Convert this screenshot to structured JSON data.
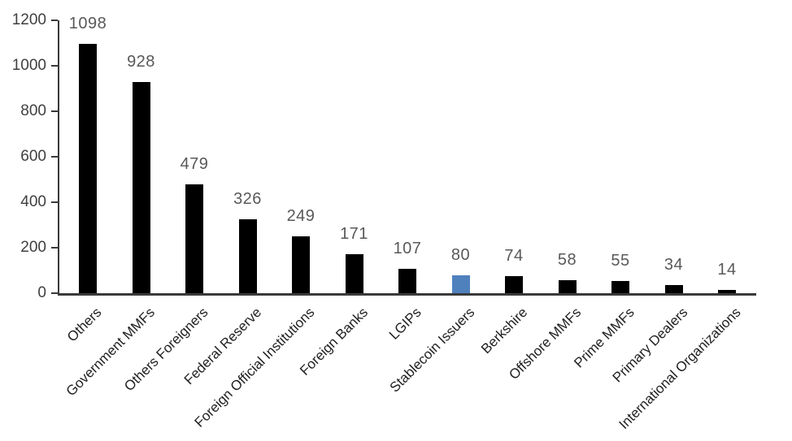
{
  "chart_data": {
    "type": "bar",
    "title": "",
    "xlabel": "",
    "ylabel": "",
    "categories": [
      "Others",
      "Government MMFs",
      "Others Foreigners",
      "Federal Reserve",
      "Foreign Official Institutions",
      "Foreign Banks",
      "LGIPs",
      "Stablecoin Issuers",
      "Berkshire",
      "Offshore MMFs",
      "Prime MMFs",
      "Primary Dealers",
      "International Organizations"
    ],
    "values": [
      1098,
      928,
      479,
      326,
      249,
      171,
      107,
      80,
      74,
      58,
      55,
      34,
      14
    ],
    "value_labels": [
      "1098",
      "928",
      "479",
      "326",
      "249",
      "171",
      "107",
      "80",
      "74",
      "58",
      "55",
      "34",
      "14"
    ],
    "highlight_category": "Stablecoin Issuers",
    "highlight_index": 7,
    "ylim": [
      0,
      1200
    ],
    "yticks": [
      0,
      200,
      400,
      600,
      800,
      1000,
      1200
    ],
    "ytick_labels": [
      "0",
      "200",
      "400",
      "600",
      "800",
      "1000",
      "1200"
    ],
    "grid": false,
    "legend": false,
    "x_label_rotation_deg": -45,
    "colors": {
      "bar": "#000000",
      "highlight_bar": "#4f81bd",
      "value_label": "#595959",
      "y_tick_label": "#3f3f3f",
      "x_category_label": "#1f1f1f",
      "axis_line": "#3a3a3a",
      "background": "#ffffff"
    }
  }
}
